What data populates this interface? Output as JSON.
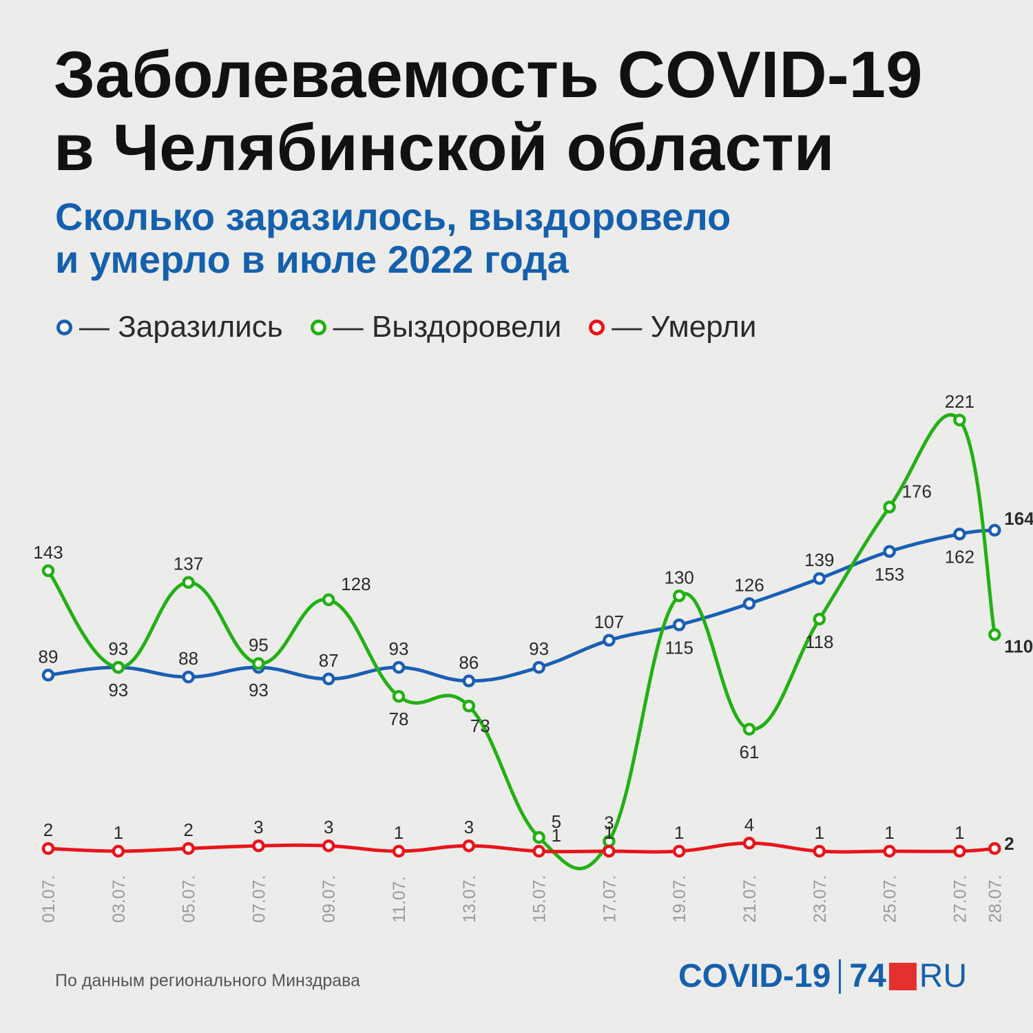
{
  "header": {
    "title_line1": "Заболеваемость COVID-19",
    "title_line2": "в Челябинской области",
    "subtitle_line1": "Сколько заразилось, выздоровело",
    "subtitle_line2": "и умерло в июле 2022 года"
  },
  "legend": [
    {
      "label": "— Заразились",
      "color": "#1a5fb4"
    },
    {
      "label": "— Выздоровели",
      "color": "#22b014"
    },
    {
      "label": "— Умерли",
      "color": "#e8141b"
    }
  ],
  "footer": {
    "source": "По данным регионального Минздрава",
    "brand_covid": "COVID-19",
    "brand_num": "74",
    "brand_ru": "RU"
  },
  "chart_data": {
    "type": "line",
    "categories": [
      "01.07.",
      "03.07.",
      "05.07.",
      "07.07.",
      "09.07.",
      "11.07.",
      "13.07.",
      "15.07.",
      "17.07.",
      "19.07.",
      "21.07.",
      "23.07.",
      "25.07.",
      "27.07.",
      "28.07."
    ],
    "series": [
      {
        "name": "Заразились",
        "color": "#1a5fb4",
        "values": [
          89,
          93,
          88,
          93,
          87,
          93,
          86,
          93,
          107,
          115,
          126,
          139,
          153,
          162,
          164
        ]
      },
      {
        "name": "Выздоровели",
        "color": "#22b014",
        "values": [
          143,
          93,
          137,
          95,
          128,
          78,
          73,
          5,
          3,
          130,
          61,
          118,
          176,
          221,
          110
        ]
      },
      {
        "name": "Умерли",
        "color": "#e8141b",
        "values": [
          2,
          1,
          2,
          3,
          3,
          1,
          3,
          1,
          1,
          1,
          4,
          1,
          1,
          1,
          2
        ]
      }
    ],
    "xlabel": "",
    "ylabel": "",
    "grid": false,
    "legend_position": "top-left"
  }
}
